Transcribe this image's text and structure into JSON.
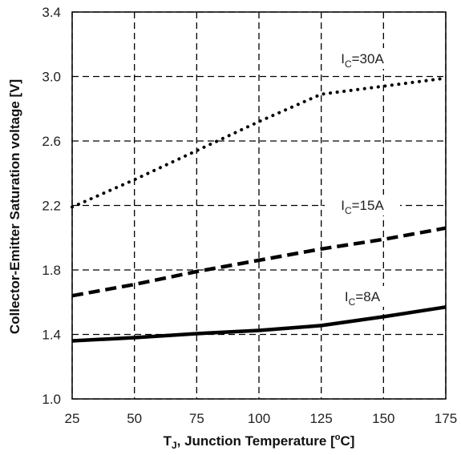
{
  "chart_data": {
    "type": "line",
    "xlabel": {
      "prefix": "T",
      "sub": "J",
      "rest": ", Junction Temperature [",
      "sup": "o",
      "unit": "C]"
    },
    "ylabel": "Collector-Emitter Saturation voltage [V]",
    "xlim": [
      25,
      175
    ],
    "ylim": [
      1.0,
      3.4
    ],
    "x_ticks": [
      "25",
      "50",
      "75",
      "100",
      "125",
      "150",
      "175"
    ],
    "y_ticks": [
      "1.0",
      "1.4",
      "1.8",
      "2.2",
      "2.6",
      "3.0",
      "3.4"
    ],
    "grid": true,
    "grid_style": "dashed",
    "series": [
      {
        "name": {
          "prefix": "I",
          "sub": "C",
          "rest": "=30A"
        },
        "style": "dotted",
        "points": [
          [
            25,
            2.19
          ],
          [
            50,
            2.36
          ],
          [
            75,
            2.54
          ],
          [
            100,
            2.72
          ],
          [
            125,
            2.89
          ],
          [
            150,
            2.94
          ],
          [
            175,
            2.99
          ]
        ]
      },
      {
        "name": {
          "prefix": "I",
          "sub": "C",
          "rest": "=15A"
        },
        "style": "dashed",
        "points": [
          [
            25,
            1.64
          ],
          [
            50,
            1.71
          ],
          [
            75,
            1.79
          ],
          [
            100,
            1.86
          ],
          [
            125,
            1.93
          ],
          [
            150,
            1.99
          ],
          [
            175,
            2.06
          ]
        ]
      },
      {
        "name": {
          "prefix": "I",
          "sub": "C",
          "rest": "=8A"
        },
        "style": "solid",
        "points": [
          [
            25,
            1.36
          ],
          [
            50,
            1.38
          ],
          [
            75,
            1.405
          ],
          [
            100,
            1.425
          ],
          [
            125,
            1.455
          ],
          [
            150,
            1.51
          ],
          [
            175,
            1.57
          ]
        ]
      }
    ]
  }
}
